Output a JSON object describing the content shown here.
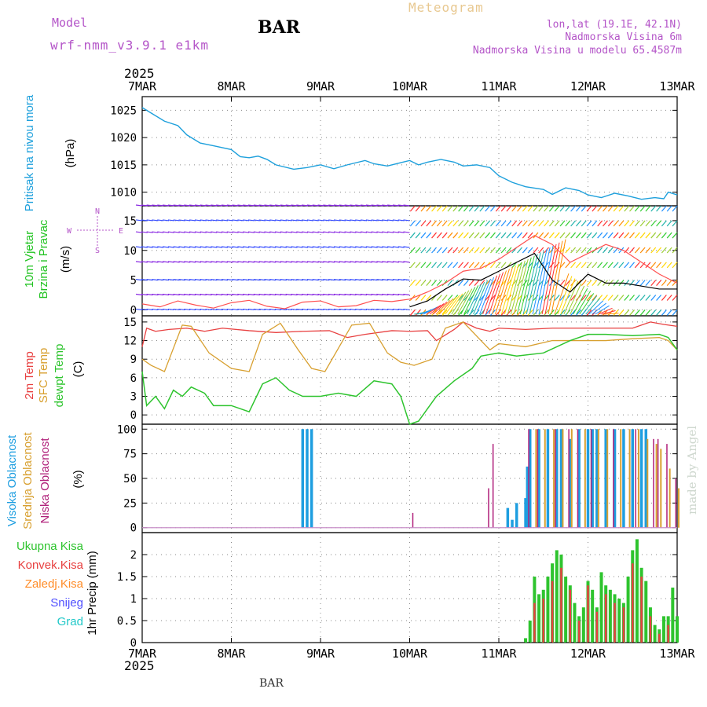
{
  "header": {
    "model_label": "Model",
    "model_name": "wrf-nmm_v3.9.1 e1km",
    "station": "BAR",
    "title": "Meteogram",
    "lonlat": "lon,lat (19.1E, 42.1N)",
    "elevation": "Nadmorska Visina 6m",
    "model_elevation": "Nadmorska Visina u modelu 65.4587m",
    "year_top": "2025",
    "year_bottom": "2025",
    "footer_station": "BAR",
    "credit": "made by Angel"
  },
  "colors": {
    "pressure": "#1ea0dc",
    "wind_label": "#22c322",
    "wind_speed": "#000000",
    "gust": "#ff5050",
    "t2m": "#e84040",
    "tsfc": "#d8a030",
    "dewpt": "#2ec42e",
    "high_cloud": "#1e9ee0",
    "mid_cloud": "#d8a030",
    "low_cloud": "#b0207a",
    "total_precip": "#2ec42e",
    "conv_precip": "#e84040",
    "frz_precip": "#ff8c28",
    "snow": "#5050ff",
    "graupel": "#20c8c8",
    "label_purple": "#b455c8"
  },
  "chart_data": [
    {
      "type": "line",
      "name": "pressure",
      "ylabel": "(hPa)",
      "side_label": "Pritisak na nivou mora",
      "x_ticks": [
        "7MAR",
        "8MAR",
        "9MAR",
        "10MAR",
        "11MAR",
        "12MAR",
        "13MAR"
      ],
      "ylim": [
        1007.5,
        1027.5
      ],
      "yticks": [
        1010,
        1015,
        1020,
        1025
      ],
      "grid": true,
      "series": [
        {
          "name": "Pritisak na nivou mora",
          "x": [
            0,
            0.1,
            0.25,
            0.4,
            0.5,
            0.65,
            0.8,
            1.0,
            1.1,
            1.2,
            1.3,
            1.4,
            1.5,
            1.7,
            1.85,
            2.0,
            2.15,
            2.3,
            2.5,
            2.6,
            2.75,
            2.9,
            3.0,
            3.1,
            3.2,
            3.35,
            3.5,
            3.6,
            3.75,
            3.9,
            4.0,
            4.15,
            4.3,
            4.5,
            4.6,
            4.75,
            4.9,
            5.0,
            5.15,
            5.3,
            5.45,
            5.6,
            5.75,
            5.85,
            5.9,
            6.0
          ],
          "values": [
            1025.5,
            1024.5,
            1023.0,
            1022.2,
            1020.5,
            1019.0,
            1018.5,
            1017.8,
            1016.5,
            1016.3,
            1016.6,
            1016.0,
            1015.0,
            1014.2,
            1014.5,
            1015.0,
            1014.3,
            1015.0,
            1015.8,
            1015.2,
            1014.8,
            1015.4,
            1015.8,
            1015.0,
            1015.5,
            1016.0,
            1015.5,
            1014.8,
            1015.0,
            1014.5,
            1013.0,
            1011.8,
            1011.0,
            1010.5,
            1009.6,
            1010.8,
            1010.3,
            1009.5,
            1009.0,
            1009.8,
            1009.3,
            1008.7,
            1009.0,
            1008.8,
            1010.0,
            1009.5
          ]
        }
      ]
    },
    {
      "type": "line",
      "name": "wind",
      "ylabel": "(m/s)",
      "side_label_1": "10m Vjetar",
      "side_label_2": "Brzina i Pravac",
      "compass": [
        "N",
        "W",
        "E",
        "S"
      ],
      "ylim": [
        -1,
        17.5
      ],
      "yticks": [
        0,
        5,
        10,
        15
      ],
      "grid": true,
      "series": [
        {
          "name": "10m Vjetar",
          "x": [
            3.0,
            3.2,
            3.4,
            3.6,
            3.8,
            4.0,
            4.2,
            4.4,
            4.6,
            4.8,
            5.0,
            5.2,
            5.4,
            5.6,
            5.8,
            6.0
          ],
          "values": [
            0.5,
            1.5,
            3.5,
            5.2,
            5.0,
            6.5,
            8.0,
            9.5,
            5.0,
            3.0,
            6.0,
            4.5,
            4.5,
            4.0,
            3.5,
            3.5
          ]
        },
        {
          "name": "gust",
          "x": [
            0,
            0.2,
            0.4,
            0.6,
            0.8,
            1.0,
            1.2,
            1.4,
            1.6,
            1.8,
            2.0,
            2.2,
            2.4,
            2.6,
            2.8,
            3.0,
            3.2,
            3.4,
            3.6,
            3.8,
            4.0,
            4.2,
            4.4,
            4.6,
            4.8,
            5.0,
            5.2,
            5.4,
            5.6,
            5.8,
            6.0
          ],
          "values": [
            1.0,
            0.5,
            1.5,
            0.8,
            0.3,
            1.2,
            1.6,
            0.6,
            0.2,
            1.3,
            1.5,
            0.5,
            0.7,
            1.6,
            1.4,
            1.8,
            3.0,
            4.5,
            6.5,
            7.0,
            8.5,
            10.5,
            12.5,
            11.0,
            8.0,
            9.5,
            11.0,
            10.0,
            8.0,
            6.0,
            4.5
          ]
        }
      ]
    },
    {
      "type": "line",
      "name": "temperature",
      "ylabel": "(C)",
      "side_label_1": "2m Temp",
      "side_label_2": "SFC Temp",
      "side_label_3": "dewpt Temp",
      "ylim": [
        -1.5,
        16
      ],
      "yticks": [
        0,
        3,
        6,
        9,
        12,
        15
      ],
      "grid": true,
      "series": [
        {
          "name": "2m Temp",
          "x": [
            0,
            0.05,
            0.15,
            0.3,
            0.5,
            0.7,
            0.9,
            1.2,
            1.5,
            1.8,
            2.1,
            2.3,
            2.5,
            2.8,
            3.0,
            3.2,
            3.3,
            3.5,
            3.6,
            3.75,
            3.9,
            4.0,
            4.3,
            4.6,
            4.9,
            5.2,
            5.5,
            5.7,
            5.85,
            6.0
          ],
          "values": [
            11.0,
            14.0,
            13.5,
            13.8,
            14.0,
            13.5,
            14.0,
            13.6,
            13.3,
            13.5,
            13.6,
            12.5,
            13.0,
            13.6,
            13.5,
            13.6,
            12.0,
            13.8,
            15.0,
            14.0,
            13.5,
            14.0,
            13.8,
            14.0,
            14.0,
            14.0,
            14.0,
            15.0,
            14.6,
            14.3
          ]
        },
        {
          "name": "SFC Temp",
          "x": [
            0,
            0.1,
            0.25,
            0.45,
            0.55,
            0.75,
            1.0,
            1.2,
            1.35,
            1.55,
            1.75,
            1.9,
            2.05,
            2.35,
            2.55,
            2.75,
            2.9,
            3.05,
            3.25,
            3.4,
            3.6,
            3.8,
            3.9,
            4.0,
            4.3,
            4.6,
            4.9,
            5.2,
            5.5,
            5.8,
            5.9,
            6.0
          ],
          "values": [
            9.0,
            8.0,
            7.0,
            14.5,
            14.3,
            10.0,
            7.5,
            7.0,
            13.0,
            14.8,
            10.5,
            7.5,
            7.0,
            14.5,
            14.8,
            10.0,
            8.5,
            8.0,
            9.0,
            14.0,
            15.0,
            12.0,
            10.5,
            11.5,
            11.0,
            12.0,
            12.0,
            12.0,
            12.3,
            12.5,
            12.0,
            10.5
          ]
        },
        {
          "name": "dewpt Temp",
          "x": [
            0,
            0.05,
            0.15,
            0.25,
            0.35,
            0.45,
            0.55,
            0.7,
            0.8,
            1.0,
            1.2,
            1.35,
            1.5,
            1.65,
            1.8,
            2.0,
            2.2,
            2.4,
            2.6,
            2.8,
            2.9,
            3.0,
            3.1,
            3.2,
            3.3,
            3.5,
            3.7,
            3.8,
            4.0,
            4.2,
            4.5,
            4.8,
            5.0,
            5.2,
            5.5,
            5.8,
            5.9,
            6.0
          ],
          "values": [
            7.0,
            1.5,
            3.0,
            1.0,
            4.0,
            3.0,
            4.5,
            3.5,
            1.5,
            1.5,
            0.5,
            5.0,
            6.0,
            4.0,
            3.0,
            3.0,
            3.5,
            3.0,
            5.5,
            5.0,
            3.0,
            -1.5,
            -1.0,
            1.0,
            3.0,
            5.5,
            7.5,
            9.5,
            10.0,
            9.5,
            10.0,
            12.0,
            13.0,
            13.0,
            12.8,
            13.0,
            12.5,
            10.5
          ]
        }
      ]
    },
    {
      "type": "bar",
      "name": "cloud_cover",
      "ylabel": "(%)",
      "side_label_1": "Visoka Oblacnost",
      "side_label_2": "Srednja Oblacnost",
      "side_label_3": "Niska Oblacnost",
      "ylim": [
        -5,
        105
      ],
      "yticks": [
        0,
        25,
        50,
        75,
        100
      ],
      "grid": true,
      "series": [
        {
          "name": "Visoka Oblacnost",
          "x": [
            1.8,
            1.85,
            1.9,
            4.1,
            4.15,
            4.2,
            4.3,
            4.32,
            4.35,
            4.45,
            4.55,
            4.65,
            4.7,
            4.8,
            4.9,
            5.0,
            5.05,
            5.1,
            5.2,
            5.3,
            5.4,
            5.5,
            5.6,
            5.65
          ],
          "values": [
            100,
            100,
            100,
            20,
            8,
            25,
            30,
            62,
            100,
            100,
            100,
            100,
            100,
            90,
            100,
            100,
            100,
            100,
            100,
            100,
            100,
            100,
            100,
            100
          ]
        },
        {
          "name": "Srednja Oblacnost",
          "x": [
            4.4,
            4.5,
            4.6,
            4.7,
            4.8,
            4.95,
            5.1,
            5.2,
            5.35,
            5.45,
            5.55,
            5.65,
            5.75,
            5.8,
            5.9,
            6.0
          ],
          "values": [
            100,
            100,
            100,
            100,
            100,
            100,
            100,
            100,
            100,
            100,
            100,
            90,
            85,
            80,
            60,
            40
          ]
        },
        {
          "name": "Niska Oblacnost",
          "x": [
            3.0,
            3.85,
            3.9,
            4.3,
            4.4,
            4.6,
            4.75,
            4.85,
            5.0,
            5.25,
            5.5,
            5.7,
            5.75,
            5.85,
            5.95
          ],
          "values": [
            15,
            40,
            85,
            100,
            100,
            100,
            100,
            100,
            100,
            100,
            100,
            90,
            90,
            85,
            50
          ]
        }
      ]
    },
    {
      "type": "bar",
      "name": "precipitation",
      "ylabel": "1hr Precip (mm)",
      "legend": [
        "Ukupna Kisa",
        "Konvek.Kisa",
        "Zaledj.Kisa",
        "Snijeg",
        "Grad"
      ],
      "ylim": [
        0,
        2.5
      ],
      "yticks": [
        0,
        0.5,
        1,
        1.5,
        2
      ],
      "grid": true,
      "series": [
        {
          "name": "Ukupna Kisa",
          "x": [
            4.3,
            4.35,
            4.4,
            4.45,
            4.5,
            4.55,
            4.6,
            4.65,
            4.7,
            4.75,
            4.8,
            4.85,
            4.9,
            4.95,
            5.0,
            5.05,
            5.1,
            5.15,
            5.2,
            5.25,
            5.3,
            5.35,
            5.4,
            5.45,
            5.5,
            5.55,
            5.6,
            5.65,
            5.7,
            5.75,
            5.8,
            5.85,
            5.9,
            5.95,
            6.0
          ],
          "values": [
            0.1,
            0.5,
            1.5,
            1.1,
            1.2,
            1.5,
            1.8,
            2.1,
            2.0,
            1.5,
            1.3,
            0.9,
            0.6,
            0.8,
            1.4,
            1.2,
            0.8,
            1.6,
            1.3,
            1.2,
            1.1,
            1.0,
            0.9,
            1.5,
            2.1,
            2.35,
            1.7,
            1.4,
            0.8,
            0.4,
            0.3,
            0.6,
            0.6,
            1.25,
            0.6
          ]
        },
        {
          "name": "Konvek.Kisa",
          "x": [
            4.4,
            4.5,
            4.6,
            4.7,
            4.8,
            4.9,
            5.0,
            5.1,
            5.2,
            5.3,
            5.4,
            5.5,
            5.6,
            5.7,
            5.8,
            5.9
          ],
          "values": [
            0.9,
            1.0,
            1.4,
            1.7,
            1.2,
            0.5,
            1.3,
            0.7,
            1.1,
            0.9,
            0.8,
            1.8,
            1.5,
            0.6,
            0.2,
            0.4
          ]
        }
      ]
    }
  ]
}
